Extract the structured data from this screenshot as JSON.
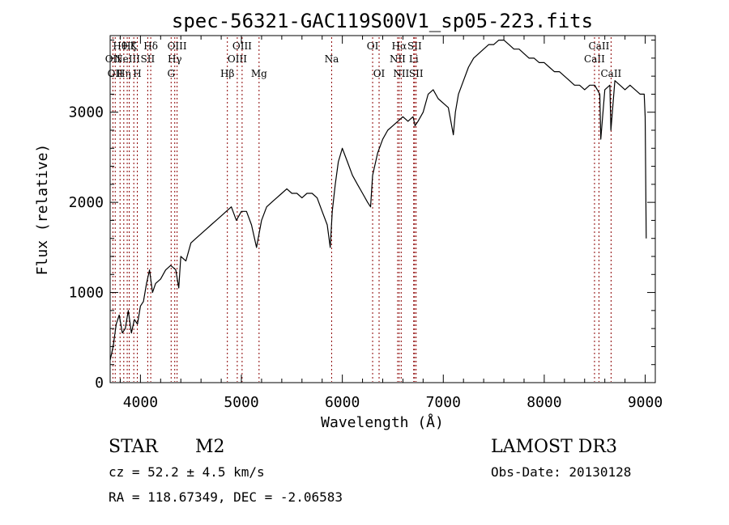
{
  "title": "spec-56321-GAC119S00V1_sp05-223.fits",
  "info": {
    "class_label": "STAR",
    "subclass_label": "M2",
    "survey": "LAMOST DR3",
    "cz": "cz = 52.2 ± 4.5 km/s",
    "obs_date": "Obs-Date: 20130128",
    "coords": "RA = 118.67349, DEC =  -2.06583"
  },
  "colors": {
    "spectrum": "#000000",
    "line_markers": "#8b0000",
    "background": "#ffffff"
  },
  "chart_data": {
    "type": "line",
    "title": "spec-56321-GAC119S00V1_sp05-223.fits",
    "xlabel": "Wavelength (Å)",
    "ylabel": "Flux (relative)",
    "xlim": [
      3700,
      9100
    ],
    "ylim": [
      0,
      3850
    ],
    "x_ticks": [
      4000,
      5000,
      6000,
      7000,
      8000,
      9000
    ],
    "y_ticks": [
      0,
      1000,
      2000,
      3000
    ],
    "grid": false,
    "legend": "none",
    "series": [
      {
        "x": [
          3700,
          3730,
          3760,
          3790,
          3820,
          3850,
          3880,
          3910,
          3940,
          3970,
          4000,
          4030,
          4060,
          4090,
          4120,
          4150,
          4200,
          4250,
          4300,
          4350,
          4380,
          4400,
          4450,
          4500,
          4550,
          4600,
          4650,
          4700,
          4750,
          4800,
          4850,
          4900,
          4950,
          5000,
          5050,
          5100,
          5150,
          5200,
          5250,
          5300,
          5350,
          5400,
          5450,
          5500,
          5550,
          5600,
          5650,
          5700,
          5750,
          5800,
          5850,
          5880,
          5900,
          5930,
          5960,
          6000,
          6050,
          6100,
          6150,
          6200,
          6250,
          6280,
          6300,
          6350,
          6400,
          6450,
          6500,
          6550,
          6600,
          6650,
          6700,
          6720,
          6750,
          6800,
          6850,
          6900,
          6950,
          7000,
          7050,
          7100,
          7120,
          7150,
          7200,
          7250,
          7300,
          7350,
          7400,
          7450,
          7500,
          7550,
          7600,
          7650,
          7700,
          7750,
          7800,
          7850,
          7900,
          7950,
          8000,
          8050,
          8100,
          8150,
          8200,
          8250,
          8300,
          8350,
          8400,
          8450,
          8500,
          8550,
          8560,
          8600,
          8650,
          8660,
          8700,
          8750,
          8800,
          8850,
          8900,
          8950,
          8990,
          9000,
          9010
        ],
        "y": [
          250,
          400,
          650,
          750,
          550,
          600,
          800,
          550,
          700,
          650,
          850,
          900,
          1100,
          1250,
          1000,
          1100,
          1150,
          1250,
          1300,
          1250,
          1050,
          1400,
          1350,
          1550,
          1600,
          1650,
          1700,
          1750,
          1800,
          1850,
          1900,
          1950,
          1800,
          1900,
          1900,
          1750,
          1500,
          1800,
          1950,
          2000,
          2050,
          2100,
          2150,
          2100,
          2100,
          2050,
          2100,
          2100,
          2050,
          1900,
          1750,
          1500,
          1900,
          2200,
          2450,
          2600,
          2450,
          2300,
          2200,
          2100,
          2000,
          1950,
          2300,
          2550,
          2700,
          2800,
          2850,
          2900,
          2950,
          2900,
          2950,
          2850,
          2900,
          3000,
          3200,
          3250,
          3150,
          3100,
          3050,
          2750,
          3000,
          3200,
          3350,
          3500,
          3600,
          3650,
          3700,
          3750,
          3750,
          3800,
          3800,
          3750,
          3700,
          3700,
          3650,
          3600,
          3600,
          3550,
          3550,
          3500,
          3450,
          3450,
          3400,
          3350,
          3300,
          3300,
          3250,
          3300,
          3300,
          3200,
          2700,
          3250,
          3300,
          2800,
          3350,
          3300,
          3250,
          3300,
          3250,
          3200,
          3200,
          2950,
          1600
        ]
      }
    ],
    "lines": [
      {
        "wl": 3727,
        "labels": [
          "OII"
        ],
        "row": 2
      },
      {
        "wl": 3750,
        "labels": [
          "OII"
        ],
        "row": 3
      },
      {
        "wl": 3798,
        "labels": [
          "Hθ"
        ],
        "row": 1
      },
      {
        "wl": 3835,
        "labels": [
          "Hη"
        ],
        "row": 3
      },
      {
        "wl": 3869,
        "labels": [
          "NeIII"
        ],
        "row": 2
      },
      {
        "wl": 3889,
        "labels": [
          "Hζ"
        ],
        "row": 1
      },
      {
        "wl": 3934,
        "labels": [
          "K"
        ],
        "row": 1
      },
      {
        "wl": 3969,
        "labels": [
          "H"
        ],
        "row": 3
      },
      {
        "wl": 4072,
        "labels": [
          "SII"
        ],
        "row": 2
      },
      {
        "wl": 4102,
        "labels": [
          "Hδ"
        ],
        "row": 1
      },
      {
        "wl": 4304,
        "labels": [
          "G"
        ],
        "row": 3
      },
      {
        "wl": 4340,
        "labels": [
          "Hγ"
        ],
        "row": 2
      },
      {
        "wl": 4363,
        "labels": [
          "OIII"
        ],
        "row": 1
      },
      {
        "wl": 4861,
        "labels": [
          "Hβ"
        ],
        "row": 3
      },
      {
        "wl": 4959,
        "labels": [
          "OIII"
        ],
        "row": 2
      },
      {
        "wl": 5007,
        "labels": [
          "OIII"
        ],
        "row": 1
      },
      {
        "wl": 5175,
        "labels": [
          "Mg"
        ],
        "row": 3
      },
      {
        "wl": 5894,
        "labels": [
          "Na"
        ],
        "row": 2
      },
      {
        "wl": 6300,
        "labels": [
          "OI"
        ],
        "row": 1
      },
      {
        "wl": 6364,
        "labels": [
          "OI"
        ],
        "row": 3
      },
      {
        "wl": 6548,
        "labels": [
          "NII"
        ],
        "row": 2
      },
      {
        "wl": 6563,
        "labels": [
          "Hα"
        ],
        "row": 1
      },
      {
        "wl": 6583,
        "labels": [
          "NII"
        ],
        "row": 3
      },
      {
        "wl": 6707,
        "labels": [
          "Li"
        ],
        "row": 2
      },
      {
        "wl": 6716,
        "labels": [
          "SII"
        ],
        "row": 1
      },
      {
        "wl": 6731,
        "labels": [
          "SII"
        ],
        "row": 3
      },
      {
        "wl": 8498,
        "labels": [
          "CaII"
        ],
        "row": 2
      },
      {
        "wl": 8542,
        "labels": [
          "CaII"
        ],
        "row": 1
      },
      {
        "wl": 8662,
        "labels": [
          "CaII"
        ],
        "row": 3
      }
    ]
  }
}
